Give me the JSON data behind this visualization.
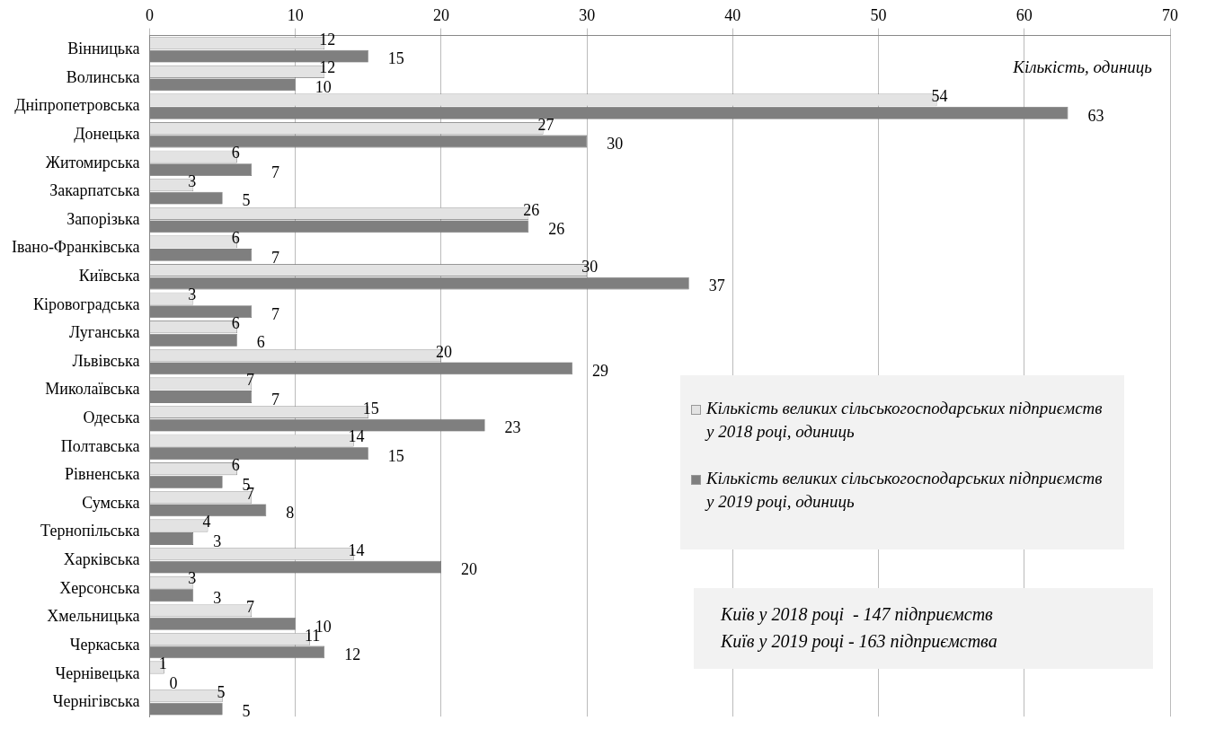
{
  "chart_data": {
    "type": "bar",
    "orientation": "horizontal",
    "categories": [
      "Вінницька",
      "Волинська",
      "Дніпропетровська",
      "Донецька",
      "Житомирська",
      "Закарпатська",
      "Запорізька",
      "Івано-Франківська",
      "Київська",
      "Кіровоградська",
      "Луганська",
      "Львівська",
      "Миколаївська",
      "Одеська",
      "Полтавська",
      "Рівненська",
      "Сумська",
      "Тернопільська",
      "Харківська",
      "Херсонська",
      "Хмельницька",
      "Черкаська",
      "Чернівецька",
      "Чернігівська"
    ],
    "series": [
      {
        "name": "Кількість великих сільськогосподарських підприємств у 2018 році, одиниць",
        "color": "#e3e3e3",
        "values": [
          12,
          12,
          54,
          27,
          6,
          3,
          26,
          6,
          30,
          3,
          6,
          20,
          7,
          15,
          14,
          6,
          7,
          4,
          14,
          3,
          7,
          11,
          1,
          5
        ]
      },
      {
        "name": "Кількість великих сільськогосподарських підприємств у 2019 році, одиниць",
        "color": "#7f7f7f",
        "values": [
          15,
          10,
          63,
          30,
          7,
          5,
          26,
          7,
          37,
          7,
          6,
          29,
          7,
          23,
          15,
          5,
          8,
          3,
          20,
          3,
          10,
          12,
          0,
          5
        ]
      }
    ],
    "xlim": [
      0,
      70
    ],
    "xticks": [
      0,
      10,
      20,
      30,
      40,
      50,
      60,
      70
    ],
    "grid": "x",
    "legend": "right",
    "data_labels": true,
    "annotations": [
      "Кількість, одиниць",
      "Київ у 2018 році  - 147 підприємств",
      "Київ у 2019 році - 163 підприємства"
    ]
  }
}
